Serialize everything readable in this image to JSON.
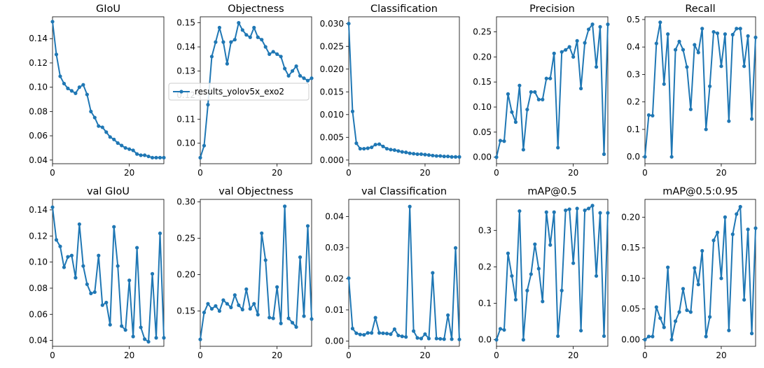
{
  "colors": {
    "series": "#1f77b4",
    "axes": "#000000",
    "background": "#ffffff"
  },
  "legend": {
    "label": "results_yolov5x_exo2",
    "panel": 1
  },
  "chart_data": [
    {
      "type": "line",
      "title": "GIoU",
      "xlim": [
        0,
        29
      ],
      "ylim": [
        0.037,
        0.158
      ],
      "xticks": [
        0,
        20
      ],
      "yticks": [
        0.04,
        0.06,
        0.08,
        0.1,
        0.12,
        0.14
      ],
      "decimals": 2,
      "x": [
        0,
        1,
        2,
        3,
        4,
        5,
        6,
        7,
        8,
        9,
        10,
        11,
        12,
        13,
        14,
        15,
        16,
        17,
        18,
        19,
        20,
        21,
        22,
        23,
        24,
        25,
        26,
        27,
        28,
        29
      ],
      "y": [
        0.154,
        0.127,
        0.109,
        0.103,
        0.099,
        0.097,
        0.095,
        0.1,
        0.102,
        0.094,
        0.08,
        0.075,
        0.068,
        0.067,
        0.063,
        0.059,
        0.057,
        0.054,
        0.052,
        0.05,
        0.049,
        0.048,
        0.045,
        0.044,
        0.044,
        0.043,
        0.042,
        0.042,
        0.042,
        0.042
      ]
    },
    {
      "type": "line",
      "title": "Objectness",
      "xlim": [
        0,
        29
      ],
      "ylim": [
        0.0915,
        0.1525
      ],
      "xticks": [
        0,
        20
      ],
      "yticks": [
        0.1,
        0.11,
        0.12,
        0.13,
        0.14,
        0.15
      ],
      "decimals": 2,
      "x": [
        0,
        1,
        2,
        3,
        4,
        5,
        6,
        7,
        8,
        9,
        10,
        11,
        12,
        13,
        14,
        15,
        16,
        17,
        18,
        19,
        20,
        21,
        22,
        23,
        24,
        25,
        26,
        27,
        28,
        29
      ],
      "y": [
        0.094,
        0.099,
        0.116,
        0.136,
        0.142,
        0.148,
        0.142,
        0.133,
        0.142,
        0.143,
        0.15,
        0.147,
        0.145,
        0.144,
        0.148,
        0.144,
        0.143,
        0.14,
        0.137,
        0.138,
        0.137,
        0.136,
        0.131,
        0.128,
        0.13,
        0.132,
        0.128,
        0.127,
        0.126,
        0.127
      ]
    },
    {
      "type": "line",
      "title": "Classification",
      "xlim": [
        0,
        29
      ],
      "ylim": [
        -0.0008,
        0.0315
      ],
      "xticks": [
        0,
        20
      ],
      "yticks": [
        0.0,
        0.005,
        0.01,
        0.015,
        0.02,
        0.025,
        0.03
      ],
      "decimals": 3,
      "x": [
        0,
        1,
        2,
        3,
        4,
        5,
        6,
        7,
        8,
        9,
        10,
        11,
        12,
        13,
        14,
        15,
        16,
        17,
        18,
        19,
        20,
        21,
        22,
        23,
        24,
        25,
        26,
        27,
        28,
        29
      ],
      "y": [
        0.03,
        0.0107,
        0.0037,
        0.0025,
        0.0025,
        0.0026,
        0.0028,
        0.0034,
        0.0035,
        0.003,
        0.0025,
        0.0023,
        0.0022,
        0.002,
        0.0018,
        0.0017,
        0.0015,
        0.0014,
        0.0013,
        0.0013,
        0.0012,
        0.0011,
        0.001,
        0.0009,
        0.0009,
        0.0008,
        0.0008,
        0.0007,
        0.0007,
        0.0007
      ]
    },
    {
      "type": "line",
      "title": "Precision",
      "xlim": [
        0,
        29
      ],
      "ylim": [
        -0.013,
        0.28
      ],
      "xticks": [
        0,
        20
      ],
      "yticks": [
        0.0,
        0.05,
        0.1,
        0.15,
        0.2,
        0.25
      ],
      "decimals": 2,
      "x": [
        0,
        1,
        2,
        3,
        4,
        5,
        6,
        7,
        8,
        9,
        10,
        11,
        12,
        13,
        14,
        15,
        16,
        17,
        18,
        19,
        20,
        21,
        22,
        23,
        24,
        25,
        26,
        27,
        28,
        29
      ],
      "y": [
        0.0,
        0.033,
        0.032,
        0.126,
        0.09,
        0.07,
        0.143,
        0.015,
        0.095,
        0.13,
        0.13,
        0.115,
        0.115,
        0.157,
        0.157,
        0.207,
        0.019,
        0.21,
        0.214,
        0.22,
        0.2,
        0.232,
        0.137,
        0.228,
        0.255,
        0.265,
        0.18,
        0.26,
        0.006,
        0.265
      ]
    },
    {
      "type": "line",
      "title": "Recall",
      "xlim": [
        0,
        29
      ],
      "ylim": [
        -0.025,
        0.51
      ],
      "xticks": [
        0,
        20
      ],
      "yticks": [
        0.0,
        0.1,
        0.2,
        0.3,
        0.4,
        0.5
      ],
      "decimals": 1,
      "x": [
        0,
        1,
        2,
        3,
        4,
        5,
        6,
        7,
        8,
        9,
        10,
        11,
        12,
        13,
        14,
        15,
        16,
        17,
        18,
        19,
        20,
        21,
        22,
        23,
        24,
        25,
        26,
        27,
        28,
        29
      ],
      "y": [
        0.0,
        0.152,
        0.15,
        0.413,
        0.49,
        0.265,
        0.447,
        0.0,
        0.39,
        0.42,
        0.39,
        0.327,
        0.173,
        0.408,
        0.38,
        0.467,
        0.1,
        0.257,
        0.455,
        0.45,
        0.33,
        0.447,
        0.13,
        0.445,
        0.467,
        0.467,
        0.33,
        0.44,
        0.138,
        0.435
      ]
    },
    {
      "type": "line",
      "title": "val GIoU",
      "xlim": [
        0,
        29
      ],
      "ylim": [
        0.0355,
        0.148
      ],
      "xticks": [
        0,
        20
      ],
      "yticks": [
        0.04,
        0.06,
        0.08,
        0.1,
        0.12,
        0.14
      ],
      "decimals": 2,
      "x": [
        0,
        1,
        2,
        3,
        4,
        5,
        6,
        7,
        8,
        9,
        10,
        11,
        12,
        13,
        14,
        15,
        16,
        17,
        18,
        19,
        20,
        21,
        22,
        23,
        24,
        25,
        26,
        27,
        28,
        29
      ],
      "y": [
        0.142,
        0.117,
        0.112,
        0.096,
        0.104,
        0.105,
        0.088,
        0.129,
        0.097,
        0.083,
        0.076,
        0.077,
        0.105,
        0.067,
        0.069,
        0.052,
        0.127,
        0.097,
        0.051,
        0.048,
        0.086,
        0.043,
        0.111,
        0.05,
        0.041,
        0.039,
        0.091,
        0.042,
        0.122,
        0.042
      ]
    },
    {
      "type": "line",
      "title": "val Objectness",
      "xlim": [
        0,
        29
      ],
      "ylim": [
        0.1015,
        0.3035
      ],
      "xticks": [
        0,
        20
      ],
      "yticks": [
        0.15,
        0.2,
        0.25,
        0.3
      ],
      "decimals": 2,
      "x": [
        0,
        1,
        2,
        3,
        4,
        5,
        6,
        7,
        8,
        9,
        10,
        11,
        12,
        13,
        14,
        15,
        16,
        17,
        18,
        19,
        20,
        21,
        22,
        23,
        24,
        25,
        26,
        27,
        28,
        29
      ],
      "y": [
        0.111,
        0.148,
        0.16,
        0.153,
        0.157,
        0.15,
        0.165,
        0.16,
        0.155,
        0.172,
        0.158,
        0.152,
        0.18,
        0.153,
        0.16,
        0.145,
        0.257,
        0.22,
        0.141,
        0.14,
        0.183,
        0.133,
        0.294,
        0.14,
        0.134,
        0.128,
        0.224,
        0.143,
        0.267,
        0.139
      ]
    },
    {
      "type": "line",
      "title": "val Classification",
      "xlim": [
        0,
        29
      ],
      "ylim": [
        -0.0017,
        0.0455
      ],
      "xticks": [
        0,
        20
      ],
      "yticks": [
        0.0,
        0.01,
        0.02,
        0.03,
        0.04
      ],
      "decimals": 2,
      "x": [
        0,
        1,
        2,
        3,
        4,
        5,
        6,
        7,
        8,
        9,
        10,
        11,
        12,
        13,
        14,
        15,
        16,
        17,
        18,
        19,
        20,
        21,
        22,
        23,
        24,
        25,
        26,
        27,
        28,
        29
      ],
      "y": [
        0.0202,
        0.004,
        0.0025,
        0.0021,
        0.002,
        0.0026,
        0.0026,
        0.0075,
        0.0026,
        0.0025,
        0.0024,
        0.0022,
        0.0038,
        0.0018,
        0.0015,
        0.0013,
        0.0432,
        0.0032,
        0.001,
        0.0008,
        0.0022,
        0.0008,
        0.0219,
        0.0008,
        0.0007,
        0.0006,
        0.0083,
        0.0006,
        0.0299,
        0.0005
      ]
    },
    {
      "type": "line",
      "title": "mAP@0.5",
      "xlim": [
        0,
        29
      ],
      "ylim": [
        -0.018,
        0.385
      ],
      "xticks": [
        0,
        20
      ],
      "yticks": [
        0.0,
        0.1,
        0.2,
        0.3
      ],
      "decimals": 1,
      "x": [
        0,
        1,
        2,
        3,
        4,
        5,
        6,
        7,
        8,
        9,
        10,
        11,
        12,
        13,
        14,
        15,
        16,
        17,
        18,
        19,
        20,
        21,
        22,
        23,
        24,
        25,
        26,
        27,
        28,
        29
      ],
      "y": [
        0.0,
        0.03,
        0.027,
        0.237,
        0.175,
        0.11,
        0.353,
        0.0,
        0.135,
        0.18,
        0.262,
        0.195,
        0.105,
        0.35,
        0.26,
        0.35,
        0.01,
        0.135,
        0.355,
        0.358,
        0.21,
        0.36,
        0.025,
        0.355,
        0.36,
        0.368,
        0.175,
        0.348,
        0.01,
        0.348
      ]
    },
    {
      "type": "line",
      "title": "mAP@0.5:0.95",
      "xlim": [
        0,
        29
      ],
      "ylim": [
        -0.011,
        0.229
      ],
      "xticks": [
        0,
        20
      ],
      "yticks": [
        0.0,
        0.05,
        0.1,
        0.15,
        0.2
      ],
      "decimals": 2,
      "x": [
        0,
        1,
        2,
        3,
        4,
        5,
        6,
        7,
        8,
        9,
        10,
        11,
        12,
        13,
        14,
        15,
        16,
        17,
        18,
        19,
        20,
        21,
        22,
        23,
        24,
        25,
        26,
        27,
        28,
        29
      ],
      "y": [
        0.0,
        0.005,
        0.005,
        0.053,
        0.035,
        0.02,
        0.118,
        0.0,
        0.03,
        0.045,
        0.083,
        0.048,
        0.045,
        0.117,
        0.09,
        0.145,
        0.005,
        0.037,
        0.162,
        0.175,
        0.1,
        0.2,
        0.015,
        0.172,
        0.205,
        0.217,
        0.065,
        0.18,
        0.01,
        0.182
      ]
    }
  ]
}
